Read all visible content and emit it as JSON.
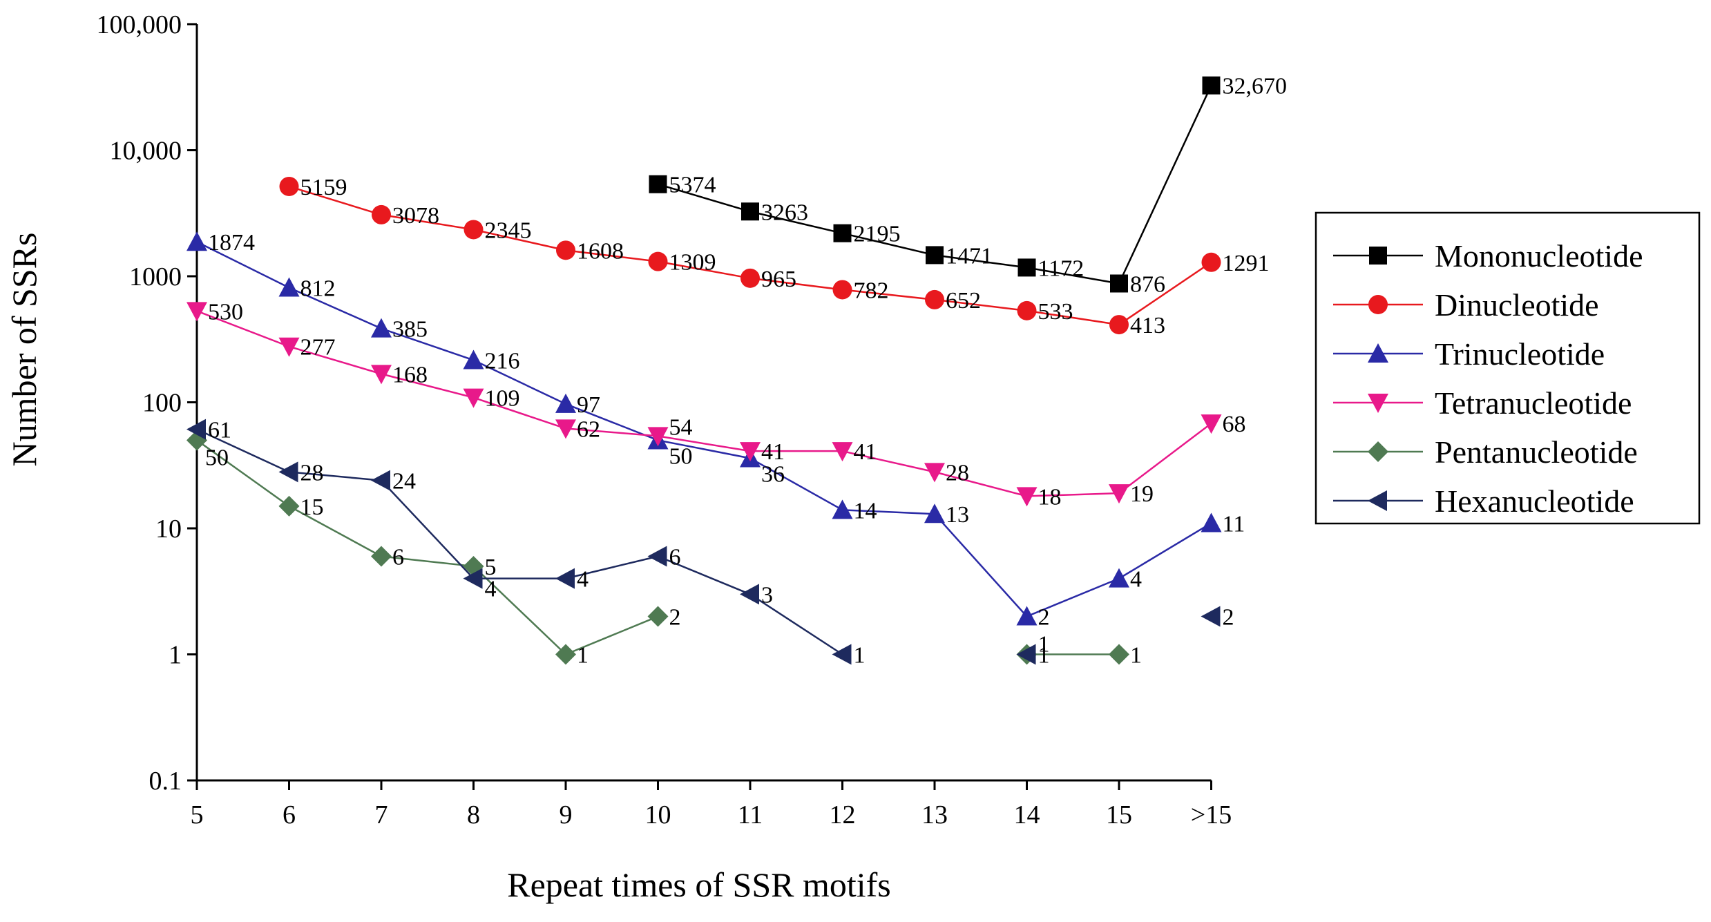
{
  "chart_data": {
    "type": "line",
    "title": "",
    "xlabel": "Repeat times of SSR motifs",
    "ylabel": "Number of SSRs",
    "y_scale": "log",
    "ylim": [
      0.1,
      100000
    ],
    "y_ticks": [
      0.1,
      1,
      10,
      100,
      1000,
      10000,
      100000
    ],
    "y_tick_labels": [
      "0.1",
      "1",
      "10",
      "100",
      "1000",
      "10,000",
      "100,000"
    ],
    "categories": [
      "5",
      "6",
      "7",
      "8",
      "9",
      "10",
      "11",
      "12",
      "13",
      "14",
      "15",
      ">15"
    ],
    "grid": false,
    "legend_position": "right",
    "series": [
      {
        "name": "Mononucleotide",
        "color": "#000000",
        "marker": "square",
        "values": [
          null,
          null,
          null,
          null,
          null,
          5374,
          3263,
          2195,
          1471,
          1172,
          876,
          32670
        ],
        "labels": [
          "",
          "",
          "",
          "",
          "",
          "5374",
          "3263",
          "2195",
          "1471",
          "1172",
          "876",
          "32,670"
        ]
      },
      {
        "name": "Dinucleotide",
        "color": "#e8191e",
        "marker": "circle",
        "values": [
          null,
          5159,
          3078,
          2345,
          1608,
          1309,
          965,
          782,
          652,
          533,
          413,
          1291
        ],
        "labels": [
          "",
          "5159",
          "3078",
          "2345",
          "1608",
          "1309",
          "965",
          "782",
          "652",
          "533",
          "413",
          "1291"
        ]
      },
      {
        "name": "Trinucleotide",
        "color": "#2a2aa6",
        "marker": "triangle-up",
        "values": [
          1874,
          812,
          385,
          216,
          97,
          50,
          36,
          14,
          13,
          2,
          4,
          11
        ],
        "labels": [
          "1874",
          "812",
          "385",
          "216",
          "97",
          "50",
          "36",
          "14",
          "13",
          "2",
          "4",
          "11"
        ]
      },
      {
        "name": "Tetranucleotide",
        "color": "#e8198a",
        "marker": "triangle-down",
        "values": [
          530,
          277,
          168,
          109,
          62,
          54,
          41,
          41,
          28,
          18,
          19,
          68
        ],
        "labels": [
          "530",
          "277",
          "168",
          "109",
          "62",
          "54",
          "41",
          "41",
          "28",
          "18",
          "19",
          "68"
        ]
      },
      {
        "name": "Pentanucleotide",
        "color": "#4f7a52",
        "marker": "diamond",
        "values": [
          50,
          15,
          6,
          5,
          1,
          2,
          null,
          null,
          null,
          1,
          1,
          null
        ],
        "labels": [
          "50",
          "15",
          "6",
          "5",
          "1",
          "2",
          "",
          "",
          "",
          "1",
          "1",
          ""
        ]
      },
      {
        "name": "Hexanucleotide",
        "color": "#1e2a5e",
        "marker": "triangle-left",
        "values": [
          61,
          28,
          24,
          4,
          4,
          6,
          3,
          1,
          null,
          1,
          null,
          2
        ],
        "labels": [
          "61",
          "28",
          "24",
          "4",
          "4",
          "6",
          "3",
          "1",
          "",
          "1",
          "",
          "2"
        ]
      }
    ]
  }
}
